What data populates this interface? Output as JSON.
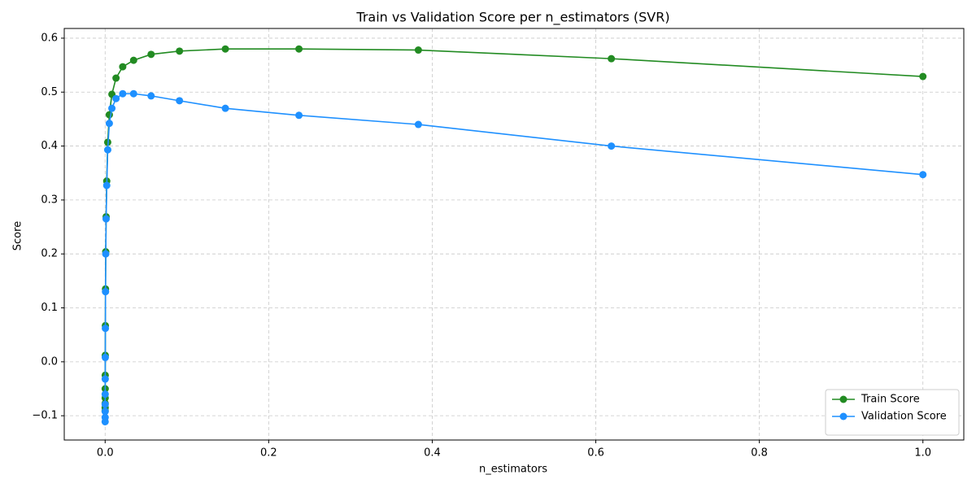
{
  "chart_data": {
    "type": "line",
    "title": "Train vs Validation Score per n_estimators (SVR)",
    "xlabel": "n_estimators",
    "ylabel": "Score",
    "x": [
      1e-05,
      1.62e-05,
      2.61e-05,
      4.22e-05,
      6.81e-05,
      0.00011,
      0.000178,
      0.000287,
      0.000464,
      0.00075,
      0.00121,
      0.00196,
      0.00316,
      0.00511,
      0.00825,
      0.0133,
      0.0215,
      0.0348,
      0.0562,
      0.0909,
      0.147,
      0.237,
      0.383,
      0.619,
      1.0
    ],
    "series": [
      {
        "name": "Train Score",
        "color": "#228b22",
        "values": [
          -0.091,
          -0.085,
          -0.077,
          -0.067,
          -0.05,
          -0.025,
          0.012,
          0.067,
          0.135,
          0.204,
          0.269,
          0.335,
          0.407,
          0.458,
          0.496,
          0.526,
          0.547,
          0.559,
          0.57,
          0.576,
          0.58,
          0.58,
          0.578,
          0.562,
          0.529
        ]
      },
      {
        "name": "Validation Score",
        "color": "#1e90ff",
        "values": [
          -0.111,
          -0.103,
          -0.092,
          -0.079,
          -0.06,
          -0.032,
          0.008,
          0.062,
          0.13,
          0.2,
          0.265,
          0.327,
          0.393,
          0.442,
          0.47,
          0.488,
          0.497,
          0.497,
          0.493,
          0.484,
          0.47,
          0.457,
          0.44,
          0.4,
          0.347
        ]
      }
    ],
    "xlim": [
      -0.05,
      1.05
    ],
    "ylim": [
      -0.145,
      0.618
    ],
    "xticks": [
      {
        "value": 0,
        "label": "0.0"
      },
      {
        "value": 0.2,
        "label": "0.2"
      },
      {
        "value": 0.4,
        "label": "0.4"
      },
      {
        "value": 0.6,
        "label": "0.6"
      },
      {
        "value": 0.8,
        "label": "0.8"
      },
      {
        "value": 1,
        "label": "1.0"
      }
    ],
    "yticks": [
      {
        "value": -0.1,
        "label": "−0.1"
      },
      {
        "value": 0,
        "label": "0.0"
      },
      {
        "value": 0.1,
        "label": "0.1"
      },
      {
        "value": 0.2,
        "label": "0.2"
      },
      {
        "value": 0.3,
        "label": "0.3"
      },
      {
        "value": 0.4,
        "label": "0.4"
      },
      {
        "value": 0.5,
        "label": "0.5"
      },
      {
        "value": 0.6,
        "label": "0.6"
      }
    ],
    "grid": true,
    "legend": "lower right"
  }
}
